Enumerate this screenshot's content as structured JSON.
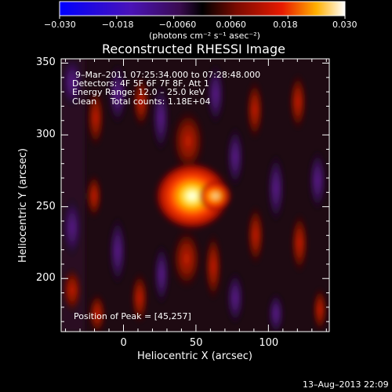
{
  "colorbar": {
    "ticks": [
      "−0.030",
      "−0.018",
      "−0.0060",
      "0.0060",
      "0.018",
      "0.030"
    ],
    "tick_values": [
      -0.03,
      -0.018,
      -0.006,
      0.006,
      0.018,
      0.03
    ],
    "range": [
      -0.03,
      0.03
    ],
    "units_label": "(photons cm⁻² s⁻¹ asec⁻²)"
  },
  "title": "Reconstructed RHESSI Image",
  "info": {
    "time": "9–Mar–2011 07:25:34.000 to 07:28:48.000",
    "detectors": "Detectors: 4F 5F 6F 7F 8F, Att 1",
    "energy": "Energy Range: 12.0 – 25.0 keV",
    "method_counts": "Clean     Total counts: 1.18E+04"
  },
  "peak_label": "Position of Peak = [45,257]",
  "axes": {
    "xlabel": "Heliocentric X (arcsec)",
    "ylabel": "Heliocentric Y (arcsec)",
    "xticks": [
      0,
      50,
      100
    ],
    "yticks": [
      200,
      250,
      300,
      350
    ],
    "xlim": [
      -43,
      142
    ],
    "ylim": [
      163,
      353
    ]
  },
  "peak": {
    "x": 45,
    "y": 257
  },
  "footer_date": "13–Aug–2013 22:09"
}
